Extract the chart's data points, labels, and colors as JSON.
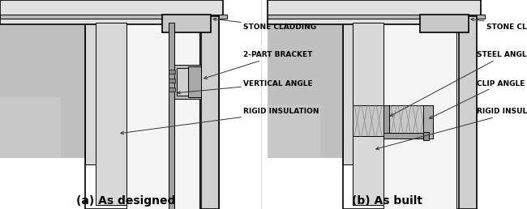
{
  "bg": "#ffffff",
  "black": "#000000",
  "gray1": "#c8c8c8",
  "gray2": "#d8d8d8",
  "gray3": "#e8e8e8",
  "gray4": "#b0b0b0",
  "gray5": "#a0a0a0",
  "hatchy": "#c0c0c0",
  "title_a": "(a) As designed",
  "title_b": "(b) As built",
  "labels_a": [
    "STONE CLADDING",
    "2-PART BRACKET",
    "VERTICAL ANGLE",
    "RIGID INSULATION"
  ],
  "labels_b": [
    "STONE CLADDING",
    "STEEL ANGLE",
    "CLIP ANGLE",
    "RIGID INSULATION"
  ],
  "lfs": 6.5,
  "tfs": 10
}
